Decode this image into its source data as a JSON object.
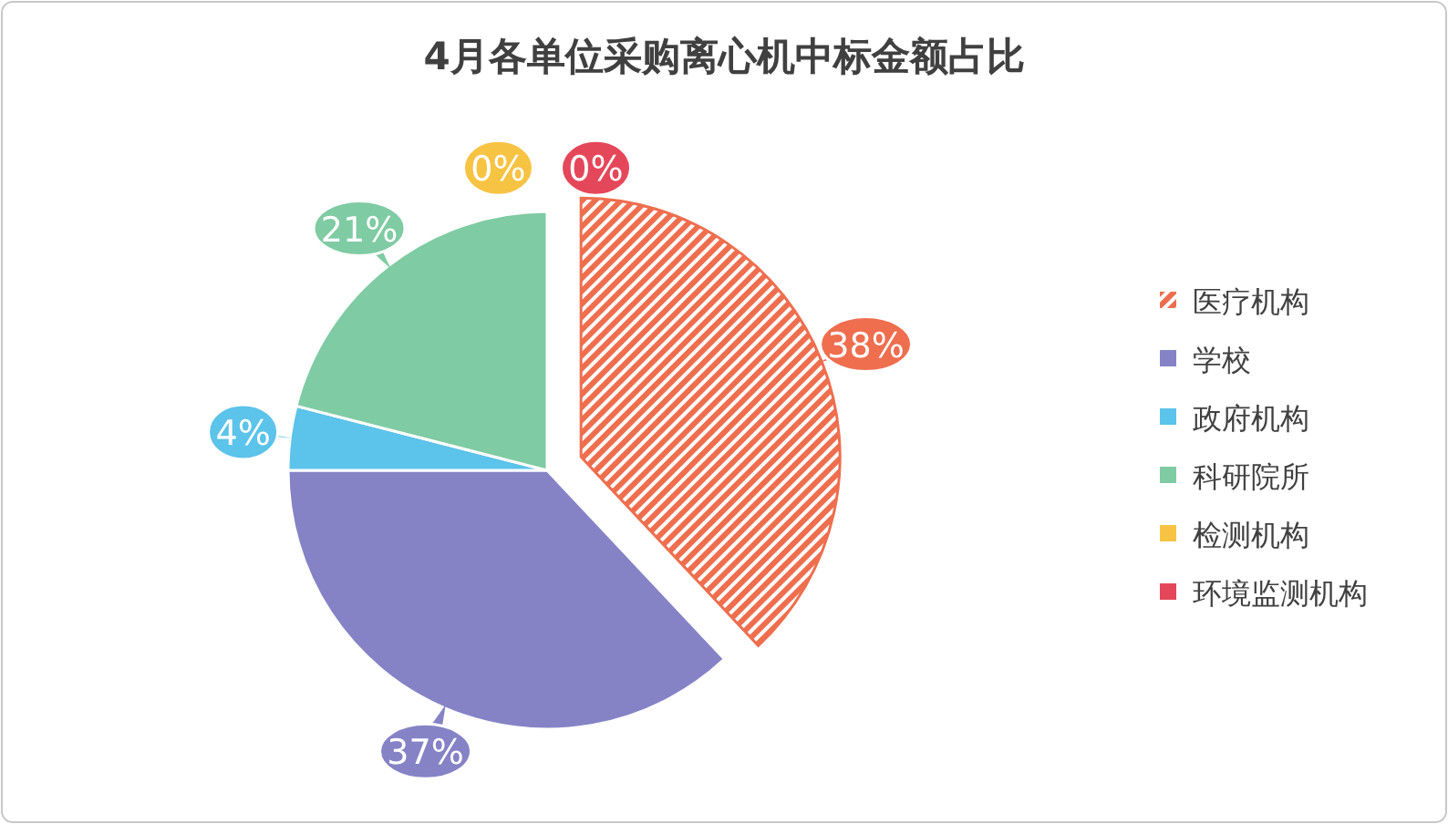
{
  "chart_data": {
    "type": "pie",
    "title": "4月各单位采购离心机中标金额占比",
    "categories": [
      "医疗机构",
      "学校",
      "政府机构",
      "科研院所",
      "检测机构",
      "环境监测机构"
    ],
    "values": [
      38,
      37,
      4,
      21,
      0,
      0
    ],
    "colors": [
      "#ee6e4e",
      "#8583c6",
      "#5cc3ea",
      "#7fcba3",
      "#f6c343",
      "#e5475a"
    ],
    "value_labels": [
      "38%",
      "37%",
      "4%",
      "21%",
      "0%",
      "0%"
    ],
    "legend": "right"
  }
}
